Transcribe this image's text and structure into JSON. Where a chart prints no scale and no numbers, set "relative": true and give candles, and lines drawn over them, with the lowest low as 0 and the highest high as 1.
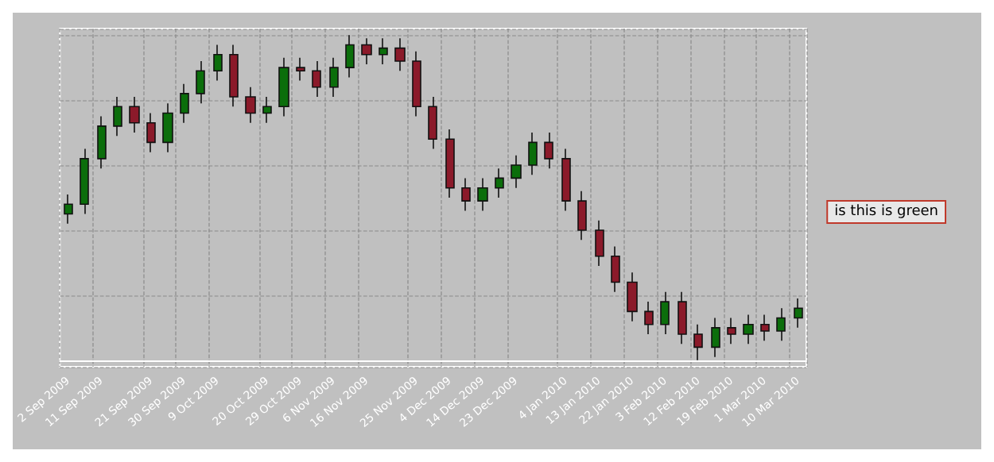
{
  "chart_data": {
    "type": "candlestick",
    "relative": true,
    "grid": true,
    "categories": [
      "2 Sep 2009",
      null,
      "11 Sep 2009",
      null,
      null,
      "21 Sep 2009",
      null,
      "30 Sep 2009",
      null,
      "9 Oct 2009",
      null,
      null,
      "20 Oct 2009",
      null,
      "29 Oct 2009",
      null,
      "6 Nov 2009",
      null,
      "16 Nov 2009",
      null,
      null,
      "25 Nov 2009",
      null,
      "4 Dec 2009",
      null,
      "14 Dec 2009",
      null,
      "23 Dec 2009",
      null,
      null,
      "4 Jan 2010",
      null,
      "13 Jan 2010",
      null,
      "22 Jan 2010",
      null,
      "3 Feb 2010",
      null,
      "12 Feb 2010",
      null,
      "19 Feb 2010",
      null,
      "1 Mar 2010",
      null,
      "10 Mar 2010"
    ],
    "ohlc": [
      [
        0.45,
        0.51,
        0.42,
        0.48
      ],
      [
        0.48,
        0.65,
        0.45,
        0.62
      ],
      [
        0.62,
        0.75,
        0.59,
        0.72
      ],
      [
        0.72,
        0.81,
        0.69,
        0.78
      ],
      [
        0.78,
        0.81,
        0.7,
        0.73
      ],
      [
        0.73,
        0.76,
        0.64,
        0.67
      ],
      [
        0.67,
        0.79,
        0.64,
        0.76
      ],
      [
        0.76,
        0.85,
        0.73,
        0.82
      ],
      [
        0.82,
        0.92,
        0.79,
        0.89
      ],
      [
        0.89,
        0.97,
        0.86,
        0.94
      ],
      [
        0.94,
        0.97,
        0.78,
        0.81
      ],
      [
        0.81,
        0.84,
        0.73,
        0.76
      ],
      [
        0.76,
        0.81,
        0.73,
        0.78
      ],
      [
        0.78,
        0.93,
        0.75,
        0.9
      ],
      [
        0.9,
        0.93,
        0.86,
        0.89
      ],
      [
        0.89,
        0.92,
        0.81,
        0.84
      ],
      [
        0.84,
        0.93,
        0.81,
        0.9
      ],
      [
        0.9,
        1.0,
        0.87,
        0.97
      ],
      [
        0.97,
        0.99,
        0.91,
        0.94
      ],
      [
        0.94,
        0.99,
        0.91,
        0.96
      ],
      [
        0.96,
        0.99,
        0.89,
        0.92
      ],
      [
        0.92,
        0.95,
        0.75,
        0.78
      ],
      [
        0.78,
        0.81,
        0.65,
        0.68
      ],
      [
        0.68,
        0.71,
        0.5,
        0.53
      ],
      [
        0.53,
        0.56,
        0.46,
        0.49
      ],
      [
        0.49,
        0.56,
        0.46,
        0.53
      ],
      [
        0.53,
        0.59,
        0.5,
        0.56
      ],
      [
        0.56,
        0.63,
        0.53,
        0.6
      ],
      [
        0.6,
        0.7,
        0.57,
        0.67
      ],
      [
        0.67,
        0.7,
        0.59,
        0.62
      ],
      [
        0.62,
        0.65,
        0.46,
        0.49
      ],
      [
        0.49,
        0.52,
        0.37,
        0.4
      ],
      [
        0.4,
        0.43,
        0.29,
        0.32
      ],
      [
        0.32,
        0.35,
        0.21,
        0.24
      ],
      [
        0.24,
        0.27,
        0.12,
        0.15
      ],
      [
        0.15,
        0.18,
        0.08,
        0.11
      ],
      [
        0.11,
        0.21,
        0.08,
        0.18
      ],
      [
        0.18,
        0.21,
        0.05,
        0.08
      ],
      [
        0.08,
        0.11,
        0.0,
        0.04
      ],
      [
        0.04,
        0.13,
        0.01,
        0.1
      ],
      [
        0.1,
        0.13,
        0.05,
        0.08
      ],
      [
        0.08,
        0.14,
        0.05,
        0.11
      ],
      [
        0.11,
        0.14,
        0.06,
        0.09
      ],
      [
        0.09,
        0.16,
        0.06,
        0.13
      ],
      [
        0.13,
        0.19,
        0.1,
        0.16
      ]
    ],
    "annotations": [
      "is this is green"
    ]
  }
}
